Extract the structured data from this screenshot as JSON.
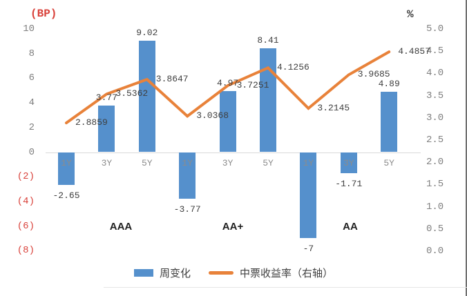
{
  "chart_data": {
    "type": "bar",
    "combo": "bar+line-dual-axis",
    "categories": [
      "1Y",
      "3Y",
      "5Y",
      "1Y",
      "3Y",
      "5Y",
      "1Y",
      "3Y",
      "5Y"
    ],
    "group_labels": [
      "AAA",
      "AA+",
      "AA"
    ],
    "left_axis": {
      "title": "(BP)",
      "tick_labels": [
        "10",
        "8",
        "6",
        "4",
        "2",
        "0",
        "(2)",
        "(4)",
        "(6)",
        "(8)"
      ],
      "tick_values": [
        10,
        8,
        6,
        4,
        2,
        0,
        -2,
        -4,
        -6,
        -8
      ],
      "range": [
        -8,
        10
      ],
      "negative_style": "red-parentheses"
    },
    "right_axis": {
      "title": "%",
      "tick_labels": [
        "5.0",
        "4.5",
        "4.0",
        "3.5",
        "3.0",
        "2.5",
        "2.0",
        "1.5",
        "1.0",
        "0.5",
        "0.0"
      ],
      "tick_values": [
        5.0,
        4.5,
        4.0,
        3.5,
        3.0,
        2.5,
        2.0,
        1.5,
        1.0,
        0.5,
        0.0
      ],
      "range": [
        0,
        5
      ]
    },
    "series": [
      {
        "name": "周变化",
        "type": "bar",
        "axis": "left",
        "color": "#5590CC",
        "values": [
          -2.65,
          3.77,
          9.02,
          -3.77,
          4.97,
          8.41,
          -7,
          -1.71,
          4.89
        ],
        "data_labels": [
          "-2.65",
          "3.77",
          "9.02",
          "-3.77",
          "4.97",
          "8.41",
          "-7",
          "-1.71",
          "4.89"
        ]
      },
      {
        "name": "中票收益率（右轴）",
        "type": "line",
        "axis": "right",
        "color": "#E8823A",
        "values": [
          2.8859,
          3.5362,
          3.8647,
          3.0368,
          3.7251,
          4.1256,
          3.2145,
          3.9685,
          4.4857
        ],
        "data_labels": [
          "2.8859",
          "3.5362",
          "3.8647",
          "3.0368",
          "3.7251",
          "4.1256",
          "3.2145",
          "3.9685",
          "4.4857"
        ]
      }
    ],
    "legend": {
      "position": "bottom",
      "entries": [
        "周变化",
        "中票收益率（右轴）"
      ]
    },
    "grid": false
  },
  "colors": {
    "bar": "#5590CC",
    "line": "#E8823A",
    "axis_text": "#7f7f7f",
    "negative_tick": "#d9423b",
    "left_axis_title": "#d9423b",
    "data_label": "#3f3f3f",
    "category_label": "#8c8c8c",
    "group_label": "#1f1f1f",
    "zero_line": "#d9d9d9",
    "background": "#ffffff"
  }
}
